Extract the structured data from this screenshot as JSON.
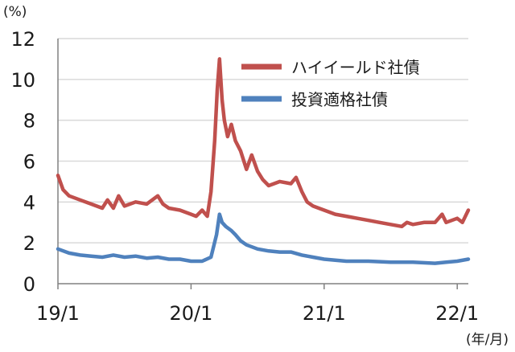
{
  "chart_data": {
    "type": "line",
    "y_unit_label": "(%)",
    "x_unit_label": "(年/月)",
    "ylim": [
      0,
      12
    ],
    "y_ticks": [
      0,
      2,
      4,
      6,
      8,
      10,
      12
    ],
    "x_range": [
      "2019-01",
      "2022-02"
    ],
    "x_ticks": [
      {
        "label": "19/1",
        "date": "2019-01"
      },
      {
        "label": "20/1",
        "date": "2020-01"
      },
      {
        "label": "21/1",
        "date": "2021-01"
      },
      {
        "label": "22/1",
        "date": "2022-01"
      }
    ],
    "grid": true,
    "legend_position": "top-right",
    "series": [
      {
        "name": "ハイイールド社債",
        "color": "#c0504d",
        "points": [
          [
            "2019-01",
            5.3
          ],
          [
            "2019-01-15",
            4.6
          ],
          [
            "2019-02",
            4.3
          ],
          [
            "2019-03",
            4.1
          ],
          [
            "2019-04",
            3.9
          ],
          [
            "2019-05",
            3.7
          ],
          [
            "2019-05-15",
            4.1
          ],
          [
            "2019-06",
            3.7
          ],
          [
            "2019-06-15",
            4.3
          ],
          [
            "2019-07",
            3.8
          ],
          [
            "2019-08",
            4.0
          ],
          [
            "2019-09",
            3.9
          ],
          [
            "2019-10",
            4.3
          ],
          [
            "2019-10-15",
            3.9
          ],
          [
            "2019-11",
            3.7
          ],
          [
            "2019-12",
            3.6
          ],
          [
            "2020-01",
            3.4
          ],
          [
            "2020-01-15",
            3.3
          ],
          [
            "2020-02",
            3.6
          ],
          [
            "2020-02-15",
            3.3
          ],
          [
            "2020-02-25",
            4.5
          ],
          [
            "2020-03-05",
            7.0
          ],
          [
            "2020-03-12",
            9.5
          ],
          [
            "2020-03-18",
            11.0
          ],
          [
            "2020-03-25",
            9.0
          ],
          [
            "2020-04-01",
            8.0
          ],
          [
            "2020-04-10",
            7.2
          ],
          [
            "2020-04-20",
            7.8
          ],
          [
            "2020-05",
            7.0
          ],
          [
            "2020-05-15",
            6.5
          ],
          [
            "2020-06",
            5.6
          ],
          [
            "2020-06-15",
            6.3
          ],
          [
            "2020-07",
            5.5
          ],
          [
            "2020-07-15",
            5.1
          ],
          [
            "2020-08",
            4.8
          ],
          [
            "2020-09",
            5.0
          ],
          [
            "2020-10",
            4.9
          ],
          [
            "2020-10-15",
            5.2
          ],
          [
            "2020-11",
            4.5
          ],
          [
            "2020-11-15",
            4.0
          ],
          [
            "2020-12",
            3.8
          ],
          [
            "2021-01",
            3.6
          ],
          [
            "2021-02",
            3.4
          ],
          [
            "2021-03",
            3.3
          ],
          [
            "2021-04",
            3.2
          ],
          [
            "2021-05",
            3.1
          ],
          [
            "2021-06",
            3.0
          ],
          [
            "2021-07",
            2.9
          ],
          [
            "2021-08",
            2.8
          ],
          [
            "2021-08-15",
            3.0
          ],
          [
            "2021-09",
            2.9
          ],
          [
            "2021-10",
            3.0
          ],
          [
            "2021-11",
            3.0
          ],
          [
            "2021-11-20",
            3.4
          ],
          [
            "2021-12",
            3.0
          ],
          [
            "2022-01",
            3.2
          ],
          [
            "2022-01-15",
            3.0
          ],
          [
            "2022-02",
            3.6
          ]
        ]
      },
      {
        "name": "投資適格社債",
        "color": "#4f81bd",
        "points": [
          [
            "2019-01",
            1.7
          ],
          [
            "2019-02",
            1.5
          ],
          [
            "2019-03",
            1.4
          ],
          [
            "2019-04",
            1.35
          ],
          [
            "2019-05",
            1.3
          ],
          [
            "2019-06",
            1.4
          ],
          [
            "2019-07",
            1.3
          ],
          [
            "2019-08",
            1.35
          ],
          [
            "2019-09",
            1.25
          ],
          [
            "2019-10",
            1.3
          ],
          [
            "2019-11",
            1.2
          ],
          [
            "2019-12",
            1.2
          ],
          [
            "2020-01",
            1.1
          ],
          [
            "2020-02",
            1.1
          ],
          [
            "2020-02-25",
            1.3
          ],
          [
            "2020-03-10",
            2.4
          ],
          [
            "2020-03-18",
            3.4
          ],
          [
            "2020-03-25",
            3.0
          ],
          [
            "2020-04-05",
            2.8
          ],
          [
            "2020-04-20",
            2.6
          ],
          [
            "2020-05",
            2.4
          ],
          [
            "2020-05-15",
            2.1
          ],
          [
            "2020-06",
            1.9
          ],
          [
            "2020-07",
            1.7
          ],
          [
            "2020-08",
            1.6
          ],
          [
            "2020-09",
            1.55
          ],
          [
            "2020-10",
            1.55
          ],
          [
            "2020-11",
            1.4
          ],
          [
            "2020-12",
            1.3
          ],
          [
            "2021-01",
            1.2
          ],
          [
            "2021-03",
            1.1
          ],
          [
            "2021-05",
            1.1
          ],
          [
            "2021-07",
            1.05
          ],
          [
            "2021-09",
            1.05
          ],
          [
            "2021-11",
            1.0
          ],
          [
            "2021-12",
            1.05
          ],
          [
            "2022-01",
            1.1
          ],
          [
            "2022-02",
            1.2
          ]
        ]
      }
    ]
  }
}
